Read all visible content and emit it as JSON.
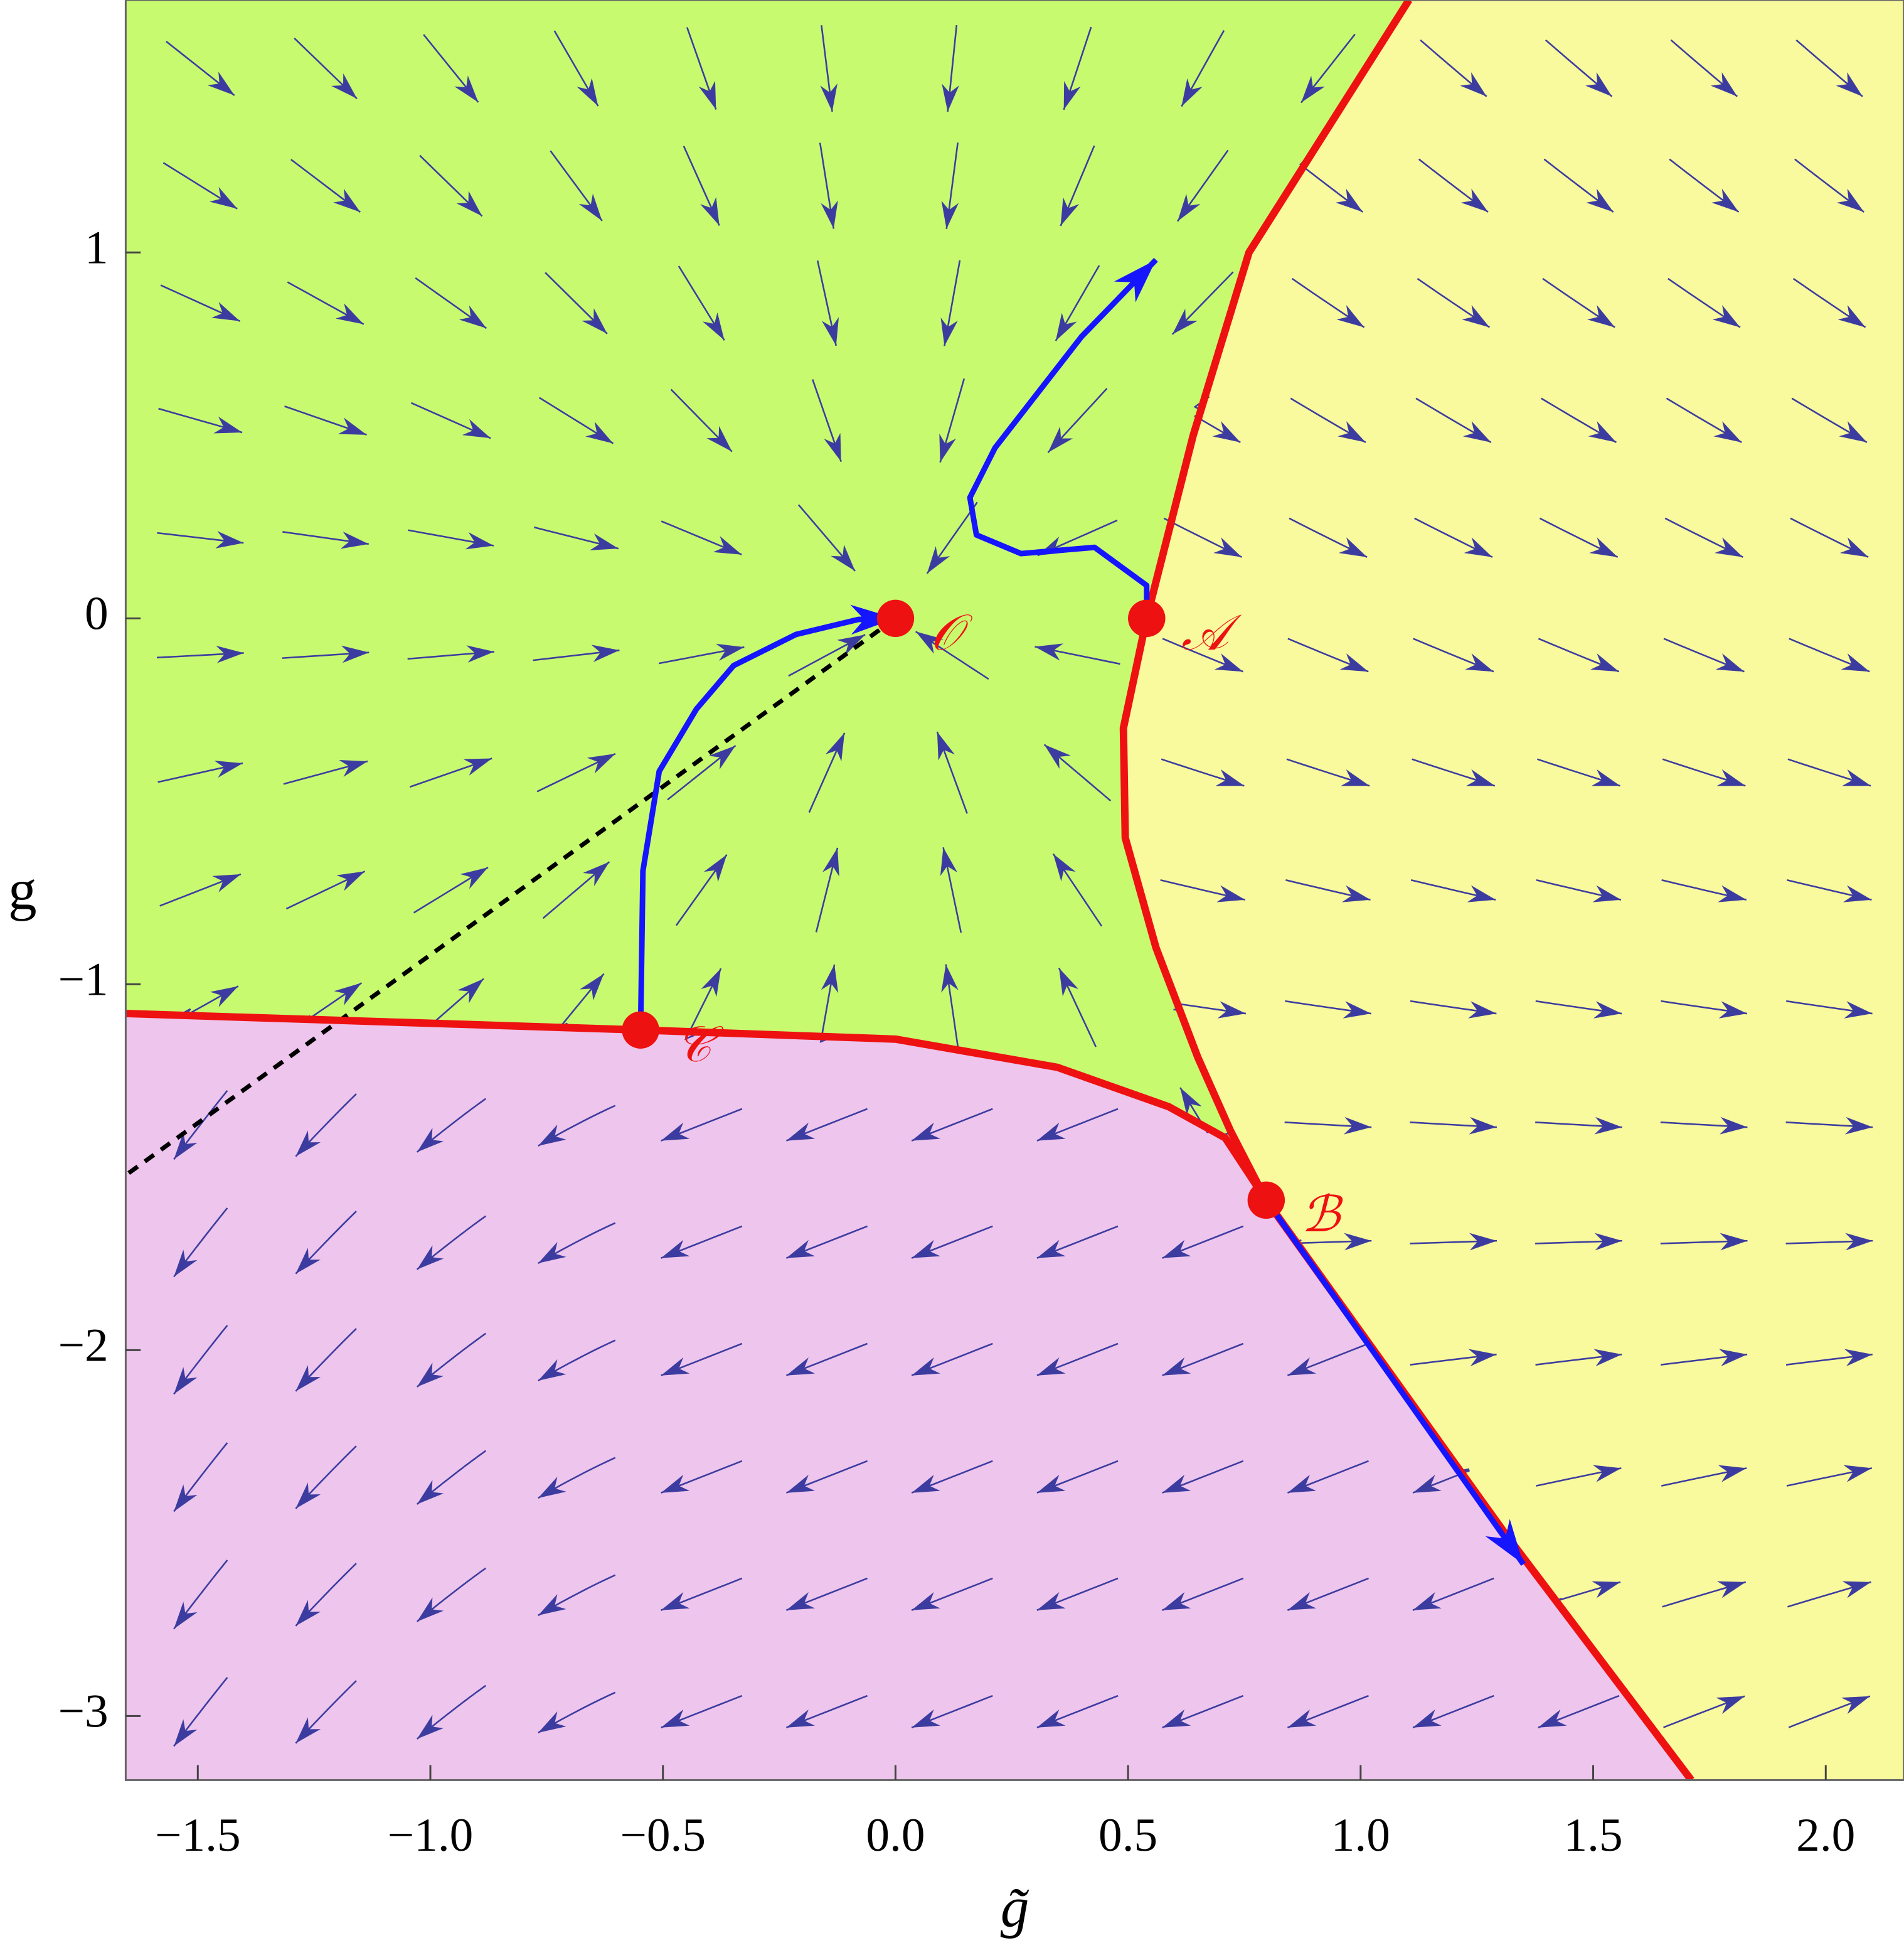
{
  "chart_data": {
    "type": "phase_portrait",
    "xlabel": "g̃",
    "ylabel": "g",
    "xlim": [
      -1.655,
      2.168
    ],
    "ylim": [
      -3.175,
      1.69
    ],
    "xticks": [
      {
        "value": -1.5,
        "label": "−1.5"
      },
      {
        "value": -1,
        "label": "−1.0"
      },
      {
        "value": -0.5,
        "label": "−0.5"
      },
      {
        "value": 0,
        "label": "0.0"
      },
      0.5,
      {
        "value": 1,
        "label": "1.0"
      },
      1.5,
      {
        "value": 2,
        "label": "2.0"
      }
    ],
    "yticks": [
      {
        "value": -3,
        "label": "−3"
      },
      {
        "value": -2,
        "label": "−2"
      },
      {
        "value": -1,
        "label": "−1"
      },
      0,
      1
    ],
    "region_colors": [
      "#c8fa70",
      "#f9f99d",
      "#eec5ec"
    ],
    "stream_color": "#3c3ca0",
    "separatrices": {
      "color": "#ee1111",
      "lines": [
        {
          "x": [
            1.104,
            0.76,
            0.64,
            0.54,
            0.49,
            0.494,
            0.56,
            0.65,
            0.72,
            0.797,
            1.31,
            1.711
          ],
          "y": [
            1.69,
            1,
            0.5,
            0,
            -0.3,
            -0.6,
            -0.9,
            -1.2,
            -1.4,
            -1.59,
            -2.5,
            -3.175
          ]
        },
        {
          "x": [
            -1.655,
            -0.548,
            0,
            0.348,
            0.588,
            0.709,
            0.797
          ],
          "y": [
            -1.08,
            -1.125,
            -1.15,
            -1.227,
            -1.335,
            -1.42,
            -1.59
          ]
        }
      ]
    },
    "trajectories": {
      "color": "#1515ff",
      "lines": [
        {
          "x": [
            0.54,
            0.54,
            0.428,
            0.27,
            0.174,
            0.16,
            0.214,
            0.4,
            0.56
          ],
          "y": [
            0,
            0.09,
            0.194,
            0.177,
            0.228,
            0.33,
            0.466,
            0.77,
            0.98
          ]
        },
        {
          "x": [
            -0.548,
            -0.543,
            -0.508,
            -0.428,
            -0.348,
            -0.214,
            -0.08,
            0
          ],
          "y": [
            -1.125,
            -0.69,
            -0.418,
            -0.248,
            -0.129,
            -0.044,
            -0.003,
            0
          ]
        },
        {
          "x": [
            0.797,
            1.35
          ],
          "y": [
            -1.59,
            -2.585
          ]
        }
      ]
    },
    "dashed_line": {
      "color": "#000000",
      "x": [
        0,
        -1.655
      ],
      "y": [
        0,
        -1.522
      ]
    },
    "fixed_points": {
      "color": "#ee1111",
      "labels": [
        "𝒪",
        "𝒜",
        "ℬ",
        "𝒞"
      ],
      "x": [
        0,
        0.54,
        0.797,
        -0.548
      ],
      "y": [
        0,
        0,
        -1.59,
        -1.125
      ]
    }
  }
}
